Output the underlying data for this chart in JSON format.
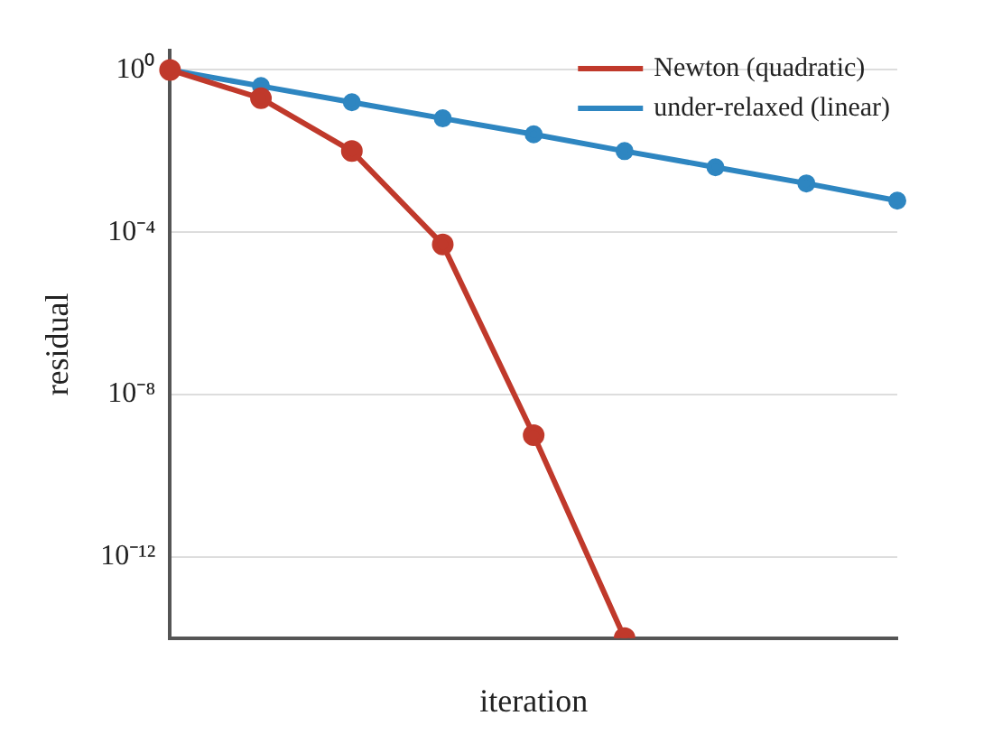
{
  "chart_data": {
    "type": "line",
    "xlabel": "iteration",
    "ylabel": "residual",
    "categories": [
      null,
      null,
      null,
      null,
      null,
      null,
      null,
      null,
      null
    ],
    "ylim": [
      1e-14,
      3
    ],
    "log": "y",
    "yticks": [
      {
        "value": 1,
        "label": "10⁰"
      },
      {
        "value": 0.0001,
        "label": "10⁻⁴"
      },
      {
        "value": 1e-08,
        "label": "10⁻⁸"
      },
      {
        "value": 1e-12,
        "label": "10⁻¹²"
      }
    ],
    "tick_labels": "y",
    "grid": "y",
    "legend": "top right",
    "marker": "circle",
    "line_style": "solid",
    "series": [
      {
        "name": "Newton (quadratic)",
        "color": "#c0392b",
        "values": [
          1,
          0.2,
          0.01,
          5e-05,
          1e-09,
          1e-14,
          null,
          null,
          null
        ]
      },
      {
        "name": "under-relaxed (linear)",
        "color": "#2e86c1",
        "values": [
          1,
          0.4,
          0.16,
          0.064,
          0.026,
          0.01,
          0.004,
          0.0016,
          0.0006
        ]
      }
    ]
  }
}
